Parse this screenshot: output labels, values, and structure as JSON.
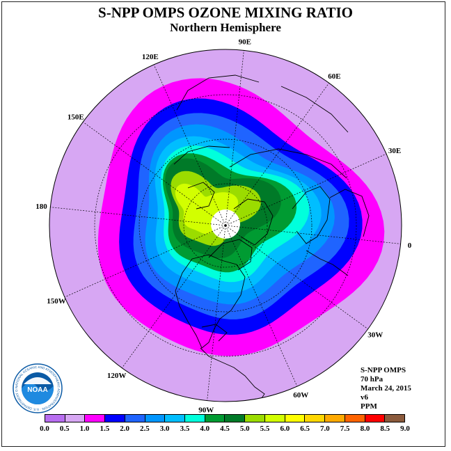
{
  "header": {
    "title": "S-NPP OMPS OZONE MIXING RATIO",
    "subtitle": "Northern Hemisphere"
  },
  "map": {
    "projection": "north-polar-stereographic",
    "longitude_labels": [
      "90E",
      "60E",
      "30E",
      "0",
      "30W",
      "60W",
      "90W",
      "120W",
      "150W",
      "180",
      "150E",
      "120E"
    ],
    "pole_missing_color": "#ffffff",
    "zones": [
      {
        "min": 0.5,
        "max": 1.0,
        "color": "#d7a7f3"
      },
      {
        "min": 1.0,
        "max": 1.5,
        "color": "#ff00ff"
      },
      {
        "min": 1.5,
        "max": 2.0,
        "color": "#0000ff"
      },
      {
        "min": 2.0,
        "max": 2.5,
        "color": "#1f64ff"
      },
      {
        "min": 2.5,
        "max": 3.0,
        "color": "#0096ff"
      },
      {
        "min": 3.0,
        "max": 3.5,
        "color": "#00beff"
      },
      {
        "min": 3.5,
        "max": 4.0,
        "color": "#00ffdc"
      },
      {
        "min": 4.0,
        "max": 4.5,
        "color": "#009b32"
      },
      {
        "min": 4.5,
        "max": 5.0,
        "color": "#007a28"
      },
      {
        "min": 5.0,
        "max": 5.5,
        "color": "#9bdc00"
      },
      {
        "min": 5.5,
        "max": 6.0,
        "color": "#d2ff00"
      }
    ]
  },
  "info": {
    "instrument": "S-NPP OMPS",
    "pressure_level": "70 hPa",
    "date": "March 24, 2015",
    "version": "v6",
    "units": "PPM"
  },
  "colorbar": {
    "colors": [
      "#b86ef0",
      "#d7a7f3",
      "#ff00ff",
      "#0000ff",
      "#1f64ff",
      "#0096ff",
      "#00beff",
      "#00ffdc",
      "#009b32",
      "#007a28",
      "#9bdc00",
      "#d2ff00",
      "#ffff00",
      "#ffd700",
      "#ffaa00",
      "#ff6400",
      "#ff0000",
      "#8b5a3c"
    ],
    "ticks": [
      "0.0",
      "0.5",
      "1.0",
      "1.5",
      "2.0",
      "2.5",
      "3.0",
      "3.5",
      "4.0",
      "4.5",
      "5.0",
      "5.5",
      "6.0",
      "6.5",
      "7.0",
      "7.5",
      "8.0",
      "8.5",
      "9.0"
    ]
  },
  "logo": {
    "name": "NOAA",
    "ring_text": "NATIONAL OCEANIC AND ATMOSPHERIC ADMINISTRATION · U.S. DEPARTMENT OF COMMERCE"
  }
}
